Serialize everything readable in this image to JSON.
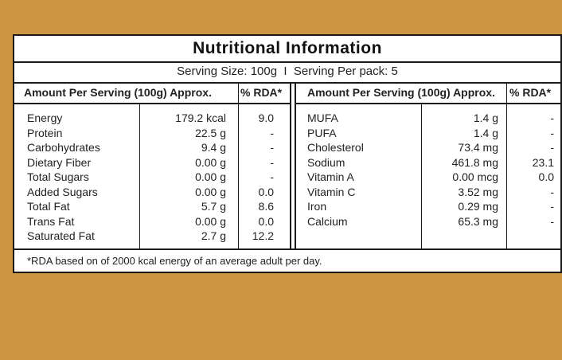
{
  "title": "Nutritional Information",
  "serving_text": "Serving Size: 100g  I  Serving Per pack: 5",
  "headers": {
    "amount": "Amount Per Serving (100g) Approx.",
    "rda": "% RDA*"
  },
  "left_rows": [
    {
      "name": "Energy",
      "amount": "179.2 kcal",
      "rda": "9.0"
    },
    {
      "name": "Protein",
      "amount": "22.5 g",
      "rda": "-"
    },
    {
      "name": "Carbohydrates",
      "amount": "9.4 g",
      "rda": "-"
    },
    {
      "name": "Dietary Fiber",
      "amount": "0.00 g",
      "rda": "-"
    },
    {
      "name": "Total Sugars",
      "amount": "0.00 g",
      "rda": "-"
    },
    {
      "name": "Added Sugars",
      "amount": "0.00 g",
      "rda": "0.0"
    },
    {
      "name": "Total Fat",
      "amount": "5.7 g",
      "rda": "8.6"
    },
    {
      "name": "Trans Fat",
      "amount": "0.00 g",
      "rda": "0.0"
    },
    {
      "name": "Saturated Fat",
      "amount": "2.7 g",
      "rda": "12.2"
    }
  ],
  "right_rows": [
    {
      "name": "MUFA",
      "amount": "1.4 g",
      "rda": "-"
    },
    {
      "name": "PUFA",
      "amount": "1.4 g",
      "rda": "-"
    },
    {
      "name": "Cholesterol",
      "amount": "73.4 mg",
      "rda": "-"
    },
    {
      "name": "Sodium",
      "amount": "461.8 mg",
      "rda": "23.1"
    },
    {
      "name": "Vitamin A",
      "amount": "0.00 mcg",
      "rda": "0.0"
    },
    {
      "name": "Vitamin C",
      "amount": "3.52 mg",
      "rda": "-"
    },
    {
      "name": "Iron",
      "amount": "0.29 mg",
      "rda": "-"
    },
    {
      "name": "Calcium",
      "amount": "65.3 mg",
      "rda": "-"
    }
  ],
  "footnote": "*RDA based on of 2000 kcal energy of an average adult per day."
}
